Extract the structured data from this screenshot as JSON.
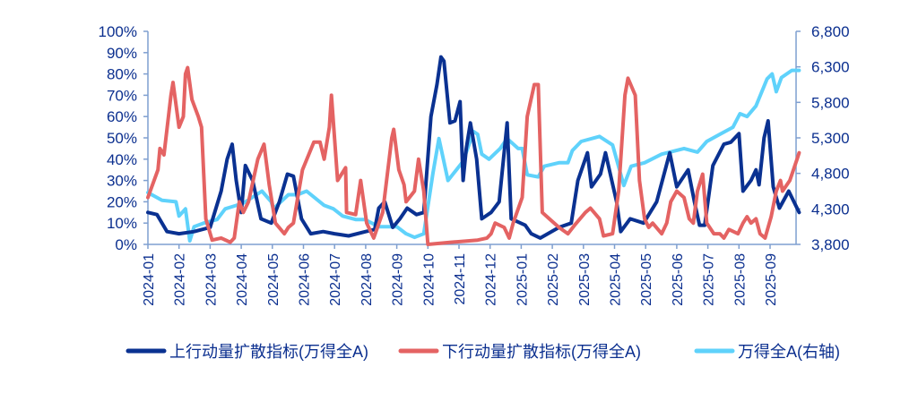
{
  "chart_data": {
    "type": "line",
    "title": "",
    "x_tick_labels": [
      "2024-01",
      "2024-02",
      "2024-03",
      "2024-04",
      "2024-05",
      "2024-06",
      "2024-07",
      "2024-08",
      "2024-09",
      "2024-10",
      "2024-11",
      "2024-12",
      "2025-01",
      "2025-02",
      "2025-03",
      "2025-04",
      "2025-05",
      "2025-06",
      "2025-07",
      "2025-08",
      "2025-09"
    ],
    "y_left": {
      "range": [
        0,
        100
      ],
      "ticks": [
        "0%",
        "10%",
        "20%",
        "30%",
        "40%",
        "50%",
        "60%",
        "70%",
        "80%",
        "90%",
        "100%"
      ]
    },
    "y_right": {
      "range": [
        3800,
        6800
      ],
      "ticks": [
        "3,800",
        "4,300",
        "4,800",
        "5,300",
        "5,800",
        "6,300",
        "6,800"
      ]
    },
    "x_range": [
      "2024-01-01",
      "2025-09-30"
    ],
    "grid": false,
    "legend_position": "bottom",
    "series": [
      {
        "name": "上行动量扩散指标(万得全A)",
        "axis": "left",
        "color": "#0a3191",
        "points": [
          [
            "2024-01-01",
            15
          ],
          [
            "2024-01-10",
            14
          ],
          [
            "2024-01-20",
            6
          ],
          [
            "2024-02-01",
            5
          ],
          [
            "2024-02-15",
            6
          ],
          [
            "2024-03-01",
            8
          ],
          [
            "2024-03-12",
            25
          ],
          [
            "2024-03-18",
            40
          ],
          [
            "2024-03-23",
            47
          ],
          [
            "2024-03-27",
            30
          ],
          [
            "2024-04-01",
            15
          ],
          [
            "2024-04-05",
            37
          ],
          [
            "2024-04-12",
            30
          ],
          [
            "2024-04-20",
            12
          ],
          [
            "2024-04-30",
            10
          ],
          [
            "2024-05-08",
            20
          ],
          [
            "2024-05-16",
            33
          ],
          [
            "2024-05-22",
            32
          ],
          [
            "2024-05-30",
            12
          ],
          [
            "2024-06-08",
            5
          ],
          [
            "2024-06-20",
            6
          ],
          [
            "2024-07-01",
            5
          ],
          [
            "2024-07-15",
            4
          ],
          [
            "2024-08-01",
            6
          ],
          [
            "2024-08-10",
            7
          ],
          [
            "2024-08-14",
            17
          ],
          [
            "2024-08-20",
            20
          ],
          [
            "2024-08-28",
            8
          ],
          [
            "2024-09-04",
            12
          ],
          [
            "2024-09-11",
            17
          ],
          [
            "2024-09-20",
            14
          ],
          [
            "2024-09-27",
            15
          ],
          [
            "2024-10-04",
            60
          ],
          [
            "2024-10-10",
            75
          ],
          [
            "2024-10-14",
            88
          ],
          [
            "2024-10-17",
            86
          ],
          [
            "2024-10-23",
            57
          ],
          [
            "2024-10-28",
            58
          ],
          [
            "2024-11-02",
            67
          ],
          [
            "2024-11-05",
            30
          ],
          [
            "2024-11-08",
            45
          ],
          [
            "2024-11-12",
            57
          ],
          [
            "2024-11-18",
            40
          ],
          [
            "2024-11-23",
            12
          ],
          [
            "2024-12-02",
            15
          ],
          [
            "2024-12-10",
            20
          ],
          [
            "2024-12-18",
            57
          ],
          [
            "2024-12-22",
            12
          ],
          [
            "2025-01-05",
            9
          ],
          [
            "2025-01-11",
            5
          ],
          [
            "2025-01-20",
            3
          ],
          [
            "2025-02-07",
            8
          ],
          [
            "2025-02-18",
            10
          ],
          [
            "2025-02-24",
            30
          ],
          [
            "2025-03-05",
            43
          ],
          [
            "2025-03-09",
            27
          ],
          [
            "2025-03-18",
            33
          ],
          [
            "2025-03-23",
            43
          ],
          [
            "2025-04-03",
            20
          ],
          [
            "2025-04-07",
            6
          ],
          [
            "2025-04-16",
            12
          ],
          [
            "2025-04-29",
            10
          ],
          [
            "2025-05-12",
            20
          ],
          [
            "2025-05-25",
            43
          ],
          [
            "2025-06-01",
            27
          ],
          [
            "2025-06-12",
            35
          ],
          [
            "2025-06-18",
            20
          ],
          [
            "2025-06-23",
            9
          ],
          [
            "2025-06-28",
            9
          ],
          [
            "2025-07-06",
            37
          ],
          [
            "2025-07-17",
            47
          ],
          [
            "2025-07-24",
            48
          ],
          [
            "2025-08-01",
            52
          ],
          [
            "2025-08-05",
            25
          ],
          [
            "2025-08-13",
            30
          ],
          [
            "2025-08-18",
            35
          ],
          [
            "2025-08-21",
            28
          ],
          [
            "2025-08-26",
            50
          ],
          [
            "2025-08-30",
            58
          ],
          [
            "2025-09-04",
            27
          ],
          [
            "2025-09-10",
            17
          ],
          [
            "2025-09-19",
            25
          ],
          [
            "2025-09-29",
            15
          ]
        ]
      },
      {
        "name": "下行动量扩散指标(万得全A)",
        "axis": "left",
        "color": "#e46363",
        "points": [
          [
            "2024-01-01",
            22
          ],
          [
            "2024-01-11",
            35
          ],
          [
            "2024-01-13",
            45
          ],
          [
            "2024-01-17",
            42
          ],
          [
            "2024-01-24",
            70
          ],
          [
            "2024-01-26",
            76
          ],
          [
            "2024-02-01",
            55
          ],
          [
            "2024-02-05",
            60
          ],
          [
            "2024-02-07",
            80
          ],
          [
            "2024-02-09",
            83
          ],
          [
            "2024-02-13",
            68
          ],
          [
            "2024-02-19",
            60
          ],
          [
            "2024-02-22",
            55
          ],
          [
            "2024-02-26",
            12
          ],
          [
            "2024-03-03",
            2
          ],
          [
            "2024-03-12",
            3
          ],
          [
            "2024-03-21",
            1
          ],
          [
            "2024-03-25",
            3
          ],
          [
            "2024-03-30",
            20
          ],
          [
            "2024-04-03",
            15
          ],
          [
            "2024-04-08",
            20
          ],
          [
            "2024-04-17",
            40
          ],
          [
            "2024-04-23",
            47
          ],
          [
            "2024-04-28",
            28
          ],
          [
            "2024-05-04",
            10
          ],
          [
            "2024-05-13",
            5
          ],
          [
            "2024-05-17",
            8
          ],
          [
            "2024-05-22",
            10
          ],
          [
            "2024-05-31",
            35
          ],
          [
            "2024-06-11",
            48
          ],
          [
            "2024-06-17",
            48
          ],
          [
            "2024-06-21",
            40
          ],
          [
            "2024-06-26",
            55
          ],
          [
            "2024-06-28",
            70
          ],
          [
            "2024-07-04",
            30
          ],
          [
            "2024-07-12",
            36
          ],
          [
            "2024-07-13",
            15
          ],
          [
            "2024-07-22",
            14
          ],
          [
            "2024-07-27",
            30
          ],
          [
            "2024-08-02",
            10
          ],
          [
            "2024-08-09",
            3
          ],
          [
            "2024-08-18",
            15
          ],
          [
            "2024-08-27",
            50
          ],
          [
            "2024-08-29",
            54
          ],
          [
            "2024-09-03",
            35
          ],
          [
            "2024-09-08",
            28
          ],
          [
            "2024-09-10",
            20
          ],
          [
            "2024-09-18",
            25
          ],
          [
            "2024-09-22",
            40
          ],
          [
            "2024-09-27",
            25
          ],
          [
            "2024-10-01",
            0
          ],
          [
            "2024-10-24",
            1
          ],
          [
            "2024-11-19",
            2
          ],
          [
            "2024-11-28",
            3
          ],
          [
            "2024-12-02",
            5
          ],
          [
            "2024-12-06",
            10
          ],
          [
            "2024-12-15",
            8
          ],
          [
            "2024-12-20",
            3
          ],
          [
            "2024-12-24",
            10
          ],
          [
            "2025-01-02",
            22
          ],
          [
            "2025-01-07",
            60
          ],
          [
            "2025-01-14",
            75
          ],
          [
            "2025-01-18",
            75
          ],
          [
            "2025-01-22",
            15
          ],
          [
            "2025-01-29",
            12
          ],
          [
            "2025-02-07",
            8
          ],
          [
            "2025-02-15",
            5
          ],
          [
            "2025-02-21",
            9
          ],
          [
            "2025-03-03",
            15
          ],
          [
            "2025-03-08",
            17
          ],
          [
            "2025-03-17",
            12
          ],
          [
            "2025-03-21",
            4
          ],
          [
            "2025-03-30",
            5
          ],
          [
            "2025-04-05",
            25
          ],
          [
            "2025-04-11",
            70
          ],
          [
            "2025-04-14",
            78
          ],
          [
            "2025-04-21",
            70
          ],
          [
            "2025-04-25",
            30
          ],
          [
            "2025-04-30",
            12
          ],
          [
            "2025-05-04",
            8
          ],
          [
            "2025-05-08",
            10
          ],
          [
            "2025-05-17",
            5
          ],
          [
            "2025-05-22",
            10
          ],
          [
            "2025-05-26",
            20
          ],
          [
            "2025-06-01",
            25
          ],
          [
            "2025-06-08",
            22
          ],
          [
            "2025-06-13",
            12
          ],
          [
            "2025-06-17",
            10
          ],
          [
            "2025-06-21",
            25
          ],
          [
            "2025-06-26",
            33
          ],
          [
            "2025-06-30",
            10
          ],
          [
            "2025-07-07",
            5
          ],
          [
            "2025-07-13",
            5
          ],
          [
            "2025-07-17",
            3
          ],
          [
            "2025-07-22",
            7
          ],
          [
            "2025-07-31",
            5
          ],
          [
            "2025-08-05",
            10
          ],
          [
            "2025-08-09",
            13
          ],
          [
            "2025-08-13",
            10
          ],
          [
            "2025-08-18",
            12
          ],
          [
            "2025-08-22",
            5
          ],
          [
            "2025-08-27",
            3
          ],
          [
            "2025-09-02",
            13
          ],
          [
            "2025-09-07",
            25
          ],
          [
            "2025-09-11",
            30
          ],
          [
            "2025-09-13",
            25
          ],
          [
            "2025-09-20",
            30
          ],
          [
            "2025-09-27",
            40
          ],
          [
            "2025-09-29",
            43
          ]
        ]
      },
      {
        "name": "万得全A(右轴)",
        "axis": "right",
        "color": "#5fd2fb",
        "points": [
          [
            "2024-01-01",
            4530
          ],
          [
            "2024-01-15",
            4420
          ],
          [
            "2024-01-29",
            4400
          ],
          [
            "2024-02-01",
            4200
          ],
          [
            "2024-02-07",
            4300
          ],
          [
            "2024-02-11",
            3850
          ],
          [
            "2024-02-15",
            4050
          ],
          [
            "2024-02-24",
            4100
          ],
          [
            "2024-03-08",
            4150
          ],
          [
            "2024-03-16",
            4300
          ],
          [
            "2024-04-03",
            4380
          ],
          [
            "2024-04-21",
            4550
          ],
          [
            "2024-04-30",
            4400
          ],
          [
            "2024-05-02",
            4300
          ],
          [
            "2024-05-17",
            4500
          ],
          [
            "2024-05-26",
            4500
          ],
          [
            "2024-06-04",
            4550
          ],
          [
            "2024-06-21",
            4350
          ],
          [
            "2024-06-30",
            4300
          ],
          [
            "2024-07-09",
            4200
          ],
          [
            "2024-07-22",
            4150
          ],
          [
            "2024-07-31",
            4150
          ],
          [
            "2024-08-14",
            4050
          ],
          [
            "2024-09-01",
            4050
          ],
          [
            "2024-09-10",
            3950
          ],
          [
            "2024-09-18",
            3900
          ],
          [
            "2024-09-27",
            3950
          ],
          [
            "2024-10-06",
            4800
          ],
          [
            "2024-10-12",
            5290
          ],
          [
            "2024-10-21",
            4700
          ],
          [
            "2024-11-05",
            4970
          ],
          [
            "2024-11-15",
            5390
          ],
          [
            "2024-11-19",
            5350
          ],
          [
            "2024-11-23",
            5070
          ],
          [
            "2024-11-30",
            5000
          ],
          [
            "2024-12-11",
            5150
          ],
          [
            "2024-12-18",
            5290
          ],
          [
            "2024-12-29",
            5150
          ],
          [
            "2025-01-02",
            5150
          ],
          [
            "2025-01-07",
            4780
          ],
          [
            "2025-01-18",
            4750
          ],
          [
            "2025-01-24",
            4900
          ],
          [
            "2025-02-07",
            4950
          ],
          [
            "2025-02-15",
            4950
          ],
          [
            "2025-02-19",
            5120
          ],
          [
            "2025-02-27",
            5250
          ],
          [
            "2025-03-17",
            5320
          ],
          [
            "2025-03-30",
            5200
          ],
          [
            "2025-04-10",
            4630
          ],
          [
            "2025-04-17",
            4900
          ],
          [
            "2025-04-30",
            4950
          ],
          [
            "2025-05-17",
            5070
          ],
          [
            "2025-06-08",
            5150
          ],
          [
            "2025-06-21",
            5100
          ],
          [
            "2025-06-30",
            5250
          ],
          [
            "2025-07-13",
            5350
          ],
          [
            "2025-07-26",
            5450
          ],
          [
            "2025-08-02",
            5640
          ],
          [
            "2025-08-09",
            5600
          ],
          [
            "2025-08-18",
            5750
          ],
          [
            "2025-08-29",
            6130
          ],
          [
            "2025-09-03",
            6200
          ],
          [
            "2025-09-07",
            5950
          ],
          [
            "2025-09-12",
            6150
          ],
          [
            "2025-09-22",
            6250
          ],
          [
            "2025-09-29",
            6250
          ]
        ]
      }
    ]
  },
  "colors": {
    "axis": "#7f9fd0",
    "text": "#0b2f8f"
  }
}
